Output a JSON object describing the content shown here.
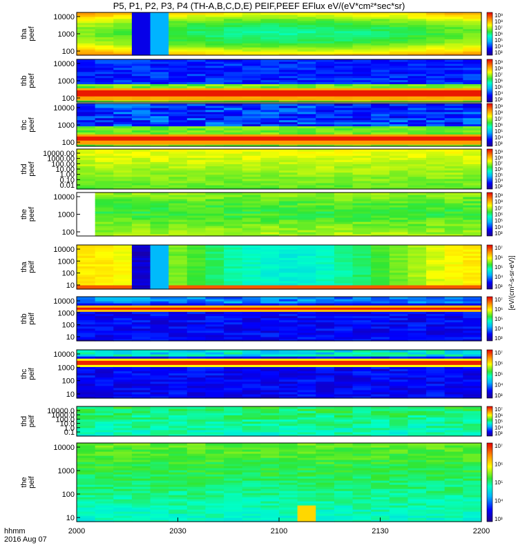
{
  "chart_data": {
    "type": "heatmap",
    "title": "P5, P1, P2, P3, P4 (TH-A,B,C,D,E) PEIF,PEEF EFlux eV/(eV*cm²*sec*sr)",
    "time_axis": {
      "label_top": "hhmm",
      "label_bottom": "2016 Aug 07",
      "ticks": [
        "2000",
        "2030",
        "2100",
        "2130",
        "2200"
      ]
    },
    "units_label": "[eV/(cm²-s-sr-eV)]",
    "colorbar_ticks_electron": [
      "10³",
      "10⁴",
      "10⁵",
      "10⁶",
      "10⁷",
      "10⁸",
      "10⁹"
    ],
    "colorbar_ticks_ion": [
      "10³",
      "10⁴",
      "10⁵",
      "10⁶",
      "10⁷"
    ],
    "panels": [
      {
        "probe": "tha",
        "species": "peef",
        "ylabel": "tha\npeef",
        "yticks": [
          "100",
          "1000",
          "10000"
        ],
        "style": "tha_e"
      },
      {
        "probe": "thb",
        "species": "peef",
        "ylabel": "thb\npeef",
        "yticks": [
          "100",
          "1000",
          "10000"
        ],
        "style": "thb_e"
      },
      {
        "probe": "thc",
        "species": "peef",
        "ylabel": "thc\npeef",
        "yticks": [
          "100",
          "1000",
          "10000"
        ],
        "style": "thc_e"
      },
      {
        "probe": "thd",
        "species": "peef",
        "ylabel": "thd\npeef",
        "yticks": [
          "0.01",
          "0.10",
          "1.00",
          "10.00",
          "100.00",
          "1000.00",
          "10000.00"
        ],
        "style": "thd_e"
      },
      {
        "probe": "the",
        "species": "peef",
        "ylabel": "the\npeef",
        "yticks": [
          "100",
          "1000",
          "10000"
        ],
        "style": "the_e"
      },
      {
        "probe": "tha",
        "species": "peif",
        "ylabel": "tha\npeif",
        "yticks": [
          "10",
          "100",
          "1000",
          "10000"
        ],
        "style": "tha_i"
      },
      {
        "probe": "thb",
        "species": "peif",
        "ylabel": "thb\npeif",
        "yticks": [
          "10",
          "100",
          "1000",
          "10000"
        ],
        "style": "thb_i"
      },
      {
        "probe": "thc",
        "species": "peif",
        "ylabel": "thc\npeif",
        "yticks": [
          "10",
          "100",
          "1000",
          "10000"
        ],
        "style": "thc_i"
      },
      {
        "probe": "thd",
        "species": "peif",
        "ylabel": "thd\npeif",
        "yticks": [
          "0.1",
          "1.0",
          "10.0",
          "100.0",
          "1000.0",
          "10000.0"
        ],
        "style": "thd_i"
      },
      {
        "probe": "the",
        "species": "peif",
        "ylabel": "the\npeif",
        "yticks": [
          "10",
          "100",
          "1000",
          "10000"
        ],
        "style": "the_i"
      }
    ]
  }
}
